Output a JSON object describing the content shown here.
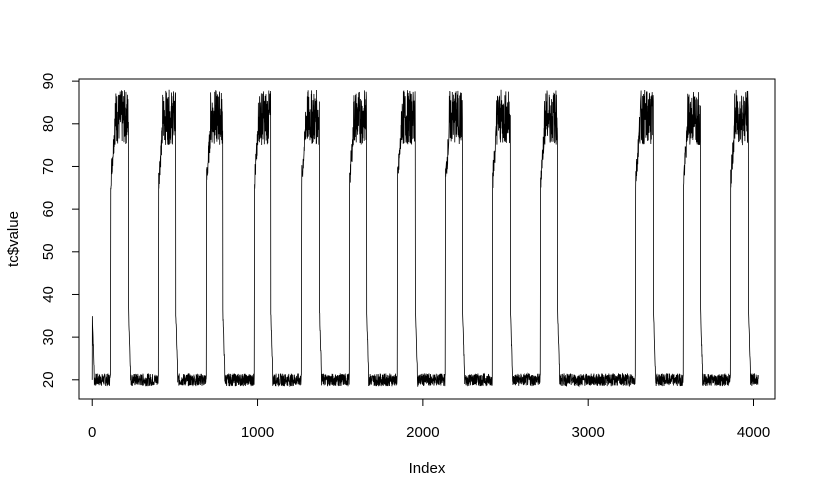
{
  "chart_data": {
    "type": "line",
    "title": "",
    "xlabel": "Index",
    "ylabel": "tc$value",
    "xlim": [
      -80,
      4130
    ],
    "ylim": [
      15.5,
      90.5
    ],
    "x_ticks": [
      0,
      1000,
      2000,
      3000,
      4000
    ],
    "y_ticks": [
      20,
      30,
      40,
      50,
      60,
      70,
      80,
      90
    ],
    "grid": false,
    "legend": "none",
    "line_color": "#000000",
    "low_level": 20,
    "high_level": 80,
    "n_points": 4030,
    "series": [
      {
        "values_description_segments": [
          {
            "from": 0,
            "to": 110,
            "level": 20
          },
          {
            "from": 110,
            "to": 220,
            "level": 80
          },
          {
            "from": 220,
            "to": 400,
            "level": 20
          },
          {
            "from": 400,
            "to": 505,
            "level": 80
          },
          {
            "from": 505,
            "to": 690,
            "level": 20
          },
          {
            "from": 690,
            "to": 790,
            "level": 80
          },
          {
            "from": 790,
            "to": 980,
            "level": 20
          },
          {
            "from": 980,
            "to": 1080,
            "level": 80
          },
          {
            "from": 1080,
            "to": 1265,
            "level": 20
          },
          {
            "from": 1265,
            "to": 1375,
            "level": 80
          },
          {
            "from": 1375,
            "to": 1555,
            "level": 20
          },
          {
            "from": 1555,
            "to": 1660,
            "level": 80
          },
          {
            "from": 1660,
            "to": 1845,
            "level": 20
          },
          {
            "from": 1845,
            "to": 1955,
            "level": 80
          },
          {
            "from": 1955,
            "to": 2135,
            "level": 20
          },
          {
            "from": 2135,
            "to": 2240,
            "level": 80
          },
          {
            "from": 2240,
            "to": 2420,
            "level": 20
          },
          {
            "from": 2420,
            "to": 2530,
            "level": 80
          },
          {
            "from": 2530,
            "to": 2710,
            "level": 20
          },
          {
            "from": 2710,
            "to": 2815,
            "level": 80
          },
          {
            "from": 2815,
            "to": 3285,
            "level": 20
          },
          {
            "from": 3285,
            "to": 3395,
            "level": 80
          },
          {
            "from": 3395,
            "to": 3575,
            "level": 20
          },
          {
            "from": 3575,
            "to": 3680,
            "level": 80
          },
          {
            "from": 3680,
            "to": 3860,
            "level": 20
          },
          {
            "from": 3860,
            "to": 3970,
            "level": 80
          },
          {
            "from": 3970,
            "to": 4030,
            "level": 20
          }
        ]
      }
    ]
  }
}
